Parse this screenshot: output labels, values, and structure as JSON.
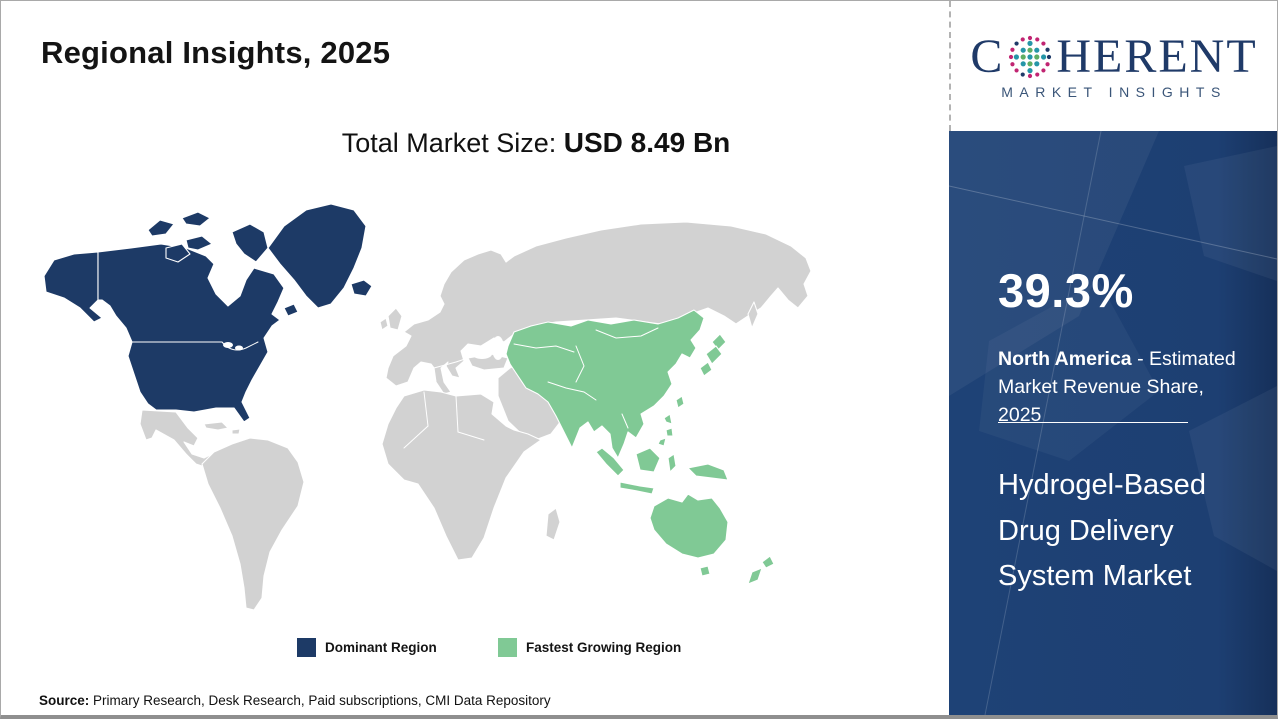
{
  "header": {
    "title": "Regional Insights, 2025"
  },
  "market_size": {
    "label": "Total Market Size: ",
    "value": "USD 8.49 Bn"
  },
  "legend": {
    "items": [
      {
        "label": "Dominant Region",
        "color": "#1d3a66"
      },
      {
        "label": "Fastest Growing Region",
        "color": "#80c995"
      }
    ]
  },
  "source": {
    "label": "Source:",
    "text": " Primary Research, Desk Research, Paid subscriptions, CMI Data Repository"
  },
  "logo": {
    "word_start": "C",
    "word_end": "HERENT",
    "subtitle": "MARKET INSIGHTS"
  },
  "sidebar": {
    "share_value": "39.3%",
    "share_region": "North America",
    "share_desc": " - Estimated Market Revenue Share, 2025",
    "market_name": "Hydrogel-Based Drug Delivery System Market"
  },
  "map": {
    "dominant_region": "North America",
    "fastest_growing_region": "Asia Pacific",
    "colors": {
      "dominant": "#1d3a66",
      "fastest_growing": "#80c995",
      "other": "#d2d2d2",
      "ocean": "#ffffff"
    }
  },
  "chart_data": {
    "type": "choropleth",
    "title": "Regional Insights, 2025",
    "total_market_size": "USD 8.49 Bn",
    "regions": [
      {
        "name": "North America",
        "status": "Dominant Region",
        "estimated_market_revenue_share_2025_pct": 39.3,
        "color": "#1d3a66",
        "highlighted_areas": [
          "United States",
          "Canada",
          "Alaska",
          "Greenland",
          "Iceland"
        ]
      },
      {
        "name": "Asia Pacific",
        "status": "Fastest Growing Region",
        "color": "#80c995",
        "highlighted_areas": [
          "China",
          "Mongolia",
          "Central Asia",
          "India",
          "Southeast Asia",
          "Japan",
          "Korea",
          "Indonesia",
          "Philippines",
          "Papua New Guinea",
          "Australia",
          "New Zealand"
        ]
      }
    ],
    "legend": [
      "Dominant Region",
      "Fastest Growing Region"
    ],
    "legend_position": "bottom-center"
  }
}
